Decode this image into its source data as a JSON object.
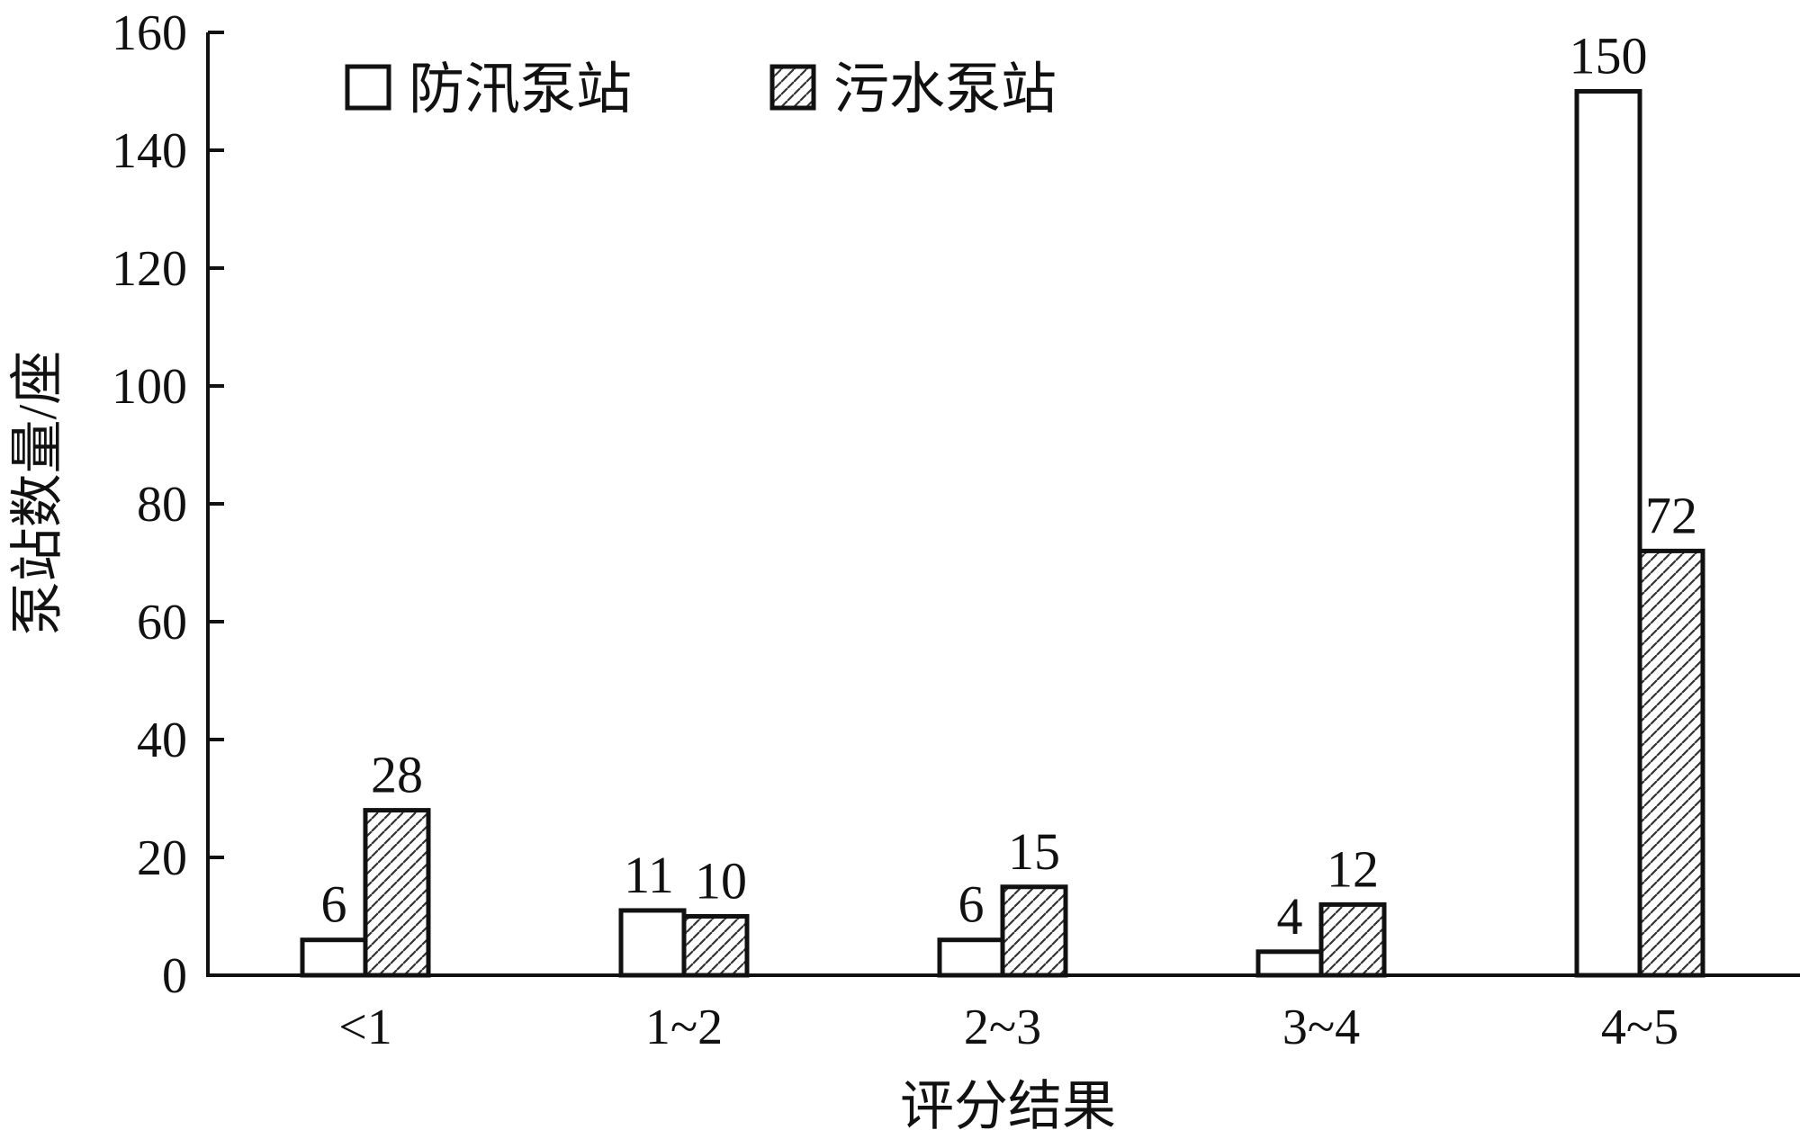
{
  "chart_data": {
    "type": "bar",
    "categories": [
      "<1",
      "1~2",
      "2~3",
      "3~4",
      "4~5"
    ],
    "series": [
      {
        "name": "防汛泵站",
        "values": [
          6,
          11,
          6,
          4,
          150
        ],
        "pattern": "solid",
        "color": "#ffffff"
      },
      {
        "name": "污水泵站",
        "values": [
          28,
          10,
          15,
          12,
          72
        ],
        "pattern": "dotted-hatch",
        "color": "#ffffff"
      }
    ],
    "data_labels": [
      [
        "6",
        "11",
        "6",
        "4",
        "150"
      ],
      [
        "28",
        "10",
        "15",
        "12",
        "72"
      ]
    ],
    "title": "",
    "xlabel": "评分结果",
    "ylabel": "泵站数量/座",
    "ylim": [
      0,
      160
    ],
    "yticks": [
      0,
      20,
      40,
      60,
      80,
      100,
      120,
      140,
      160
    ],
    "grid": false,
    "legend_position": "top-left",
    "colors": {
      "stroke": "#111111",
      "hatch": "#333333",
      "background": "#ffffff"
    }
  }
}
